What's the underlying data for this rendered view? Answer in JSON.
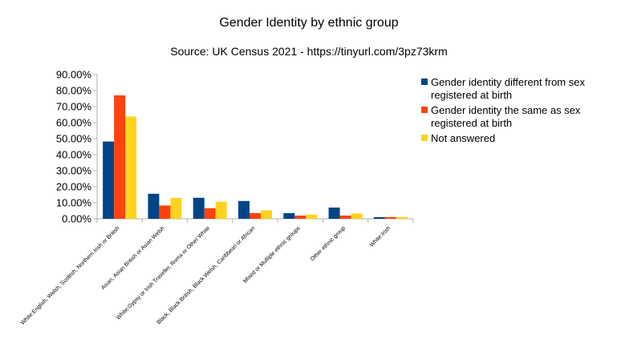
{
  "chart_data": {
    "type": "bar",
    "title": "Gender Identity by ethnic group",
    "subtitle": "Source: UK Census 2021 - https://tinyurl.com/3pz73krm",
    "categories": [
      "White:English, Welsh, Scottish, Northern Irish or British",
      "Asian, Asian British or Asian Welsh",
      "White:Gypsy or Irish Traveller, Roma or Other White",
      "Black, Black British, Black Welsh, Caribbean or African",
      "Mixed or Multiple ethnic groups",
      "Other ethnic group",
      "White:Irish"
    ],
    "series": [
      {
        "name": "Gender identity different from sex registered at birth",
        "legend_lines": [
          "Gender identity different from sex",
          "registered at birth"
        ],
        "color": "#004586",
        "values": [
          48.2,
          15.6,
          13.1,
          11.1,
          3.5,
          7.0,
          1.0
        ]
      },
      {
        "name": "Gender identity the same as sex registered at birth",
        "legend_lines": [
          "Gender identity the same as sex",
          "registered at birth"
        ],
        "color": "#ff420e",
        "values": [
          77.0,
          8.3,
          6.6,
          3.6,
          2.0,
          2.0,
          1.1
        ]
      },
      {
        "name": "Not answered",
        "legend_lines": [
          "Not answered"
        ],
        "color": "#ffd320",
        "values": [
          63.8,
          13.0,
          10.6,
          5.3,
          2.6,
          3.3,
          1.1
        ]
      }
    ],
    "ylim": [
      0,
      90
    ],
    "yticks": [
      "0.00%",
      "10.00%",
      "20.00%",
      "30.00%",
      "40.00%",
      "50.00%",
      "60.00%",
      "70.00%",
      "80.00%",
      "90.00%"
    ],
    "grid": false,
    "legend_position": "right"
  }
}
